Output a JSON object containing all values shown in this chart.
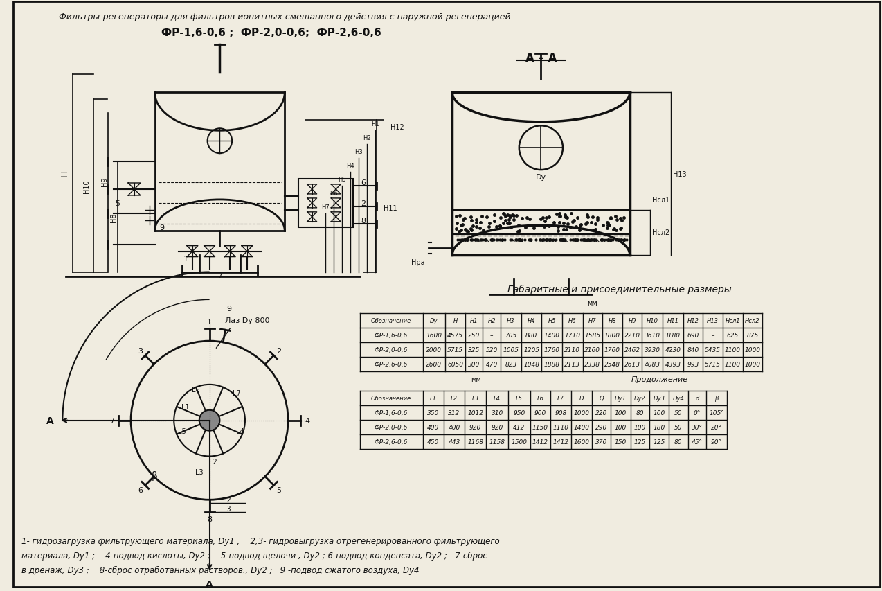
{
  "title_italic": "Фильтры-регенераторы для фильтров ионитных смешанного действия с наружной регенерацией",
  "subtitle": "ФР-1,6-0,6 ;  ФР-2,0-0,6;  ФР-2,6-0,6",
  "section_label": "А – А",
  "table1_title": "Габаритные и присоединительные размеры",
  "table1_mm_note": "мм",
  "table1_headers": [
    "Обозначение",
    "Dy",
    "H",
    "H1",
    "H2",
    "H3",
    "H4",
    "H5",
    "H6",
    "H7",
    "H8",
    "H9",
    "H10",
    "H11",
    "H12",
    "H13",
    "Нсл1",
    "Нсл2"
  ],
  "table1_rows": [
    [
      "ФР-1,6-0,6",
      "1600",
      "4575",
      "250",
      "–",
      "705",
      "880",
      "1400",
      "1710",
      "1585",
      "1800",
      "2210",
      "3610",
      "3180",
      "690",
      "–",
      "625",
      "875"
    ],
    [
      "ФР-2,0-0,6",
      "2000",
      "5715",
      "325",
      "520",
      "1005",
      "1205",
      "1760",
      "2110",
      "2160",
      "1760",
      "2462",
      "3930",
      "4230",
      "840",
      "5435",
      "1100",
      "1000"
    ],
    [
      "ФР-2,6-0,6",
      "2600",
      "6050",
      "300",
      "470",
      "823",
      "1048",
      "1888",
      "2113",
      "2338",
      "2548",
      "2613",
      "4083",
      "4393",
      "993",
      "5715",
      "1100",
      "1000"
    ]
  ],
  "table2_note_mm": "мм",
  "table2_note_cont": "Продолжение",
  "table2_headers": [
    "Обозначение",
    "L1",
    "L2",
    "L3",
    "L4",
    "L5",
    "L6",
    "L7",
    "D",
    "Q",
    "Dy1",
    "Dy2",
    "Dy3",
    "Dy4",
    "d",
    "β"
  ],
  "table2_rows": [
    [
      "ФР-1,6-0,6",
      "350",
      "312",
      "1012",
      "310",
      "950",
      "900",
      "908",
      "1000",
      "220",
      "100",
      "80",
      "100",
      "50",
      "0°",
      "105°"
    ],
    [
      "ФР-2,0-0,6",
      "400",
      "400",
      "920",
      "920",
      "412",
      "1150",
      "1110",
      "1400",
      "290",
      "100",
      "100",
      "180",
      "50",
      "30°",
      "20°"
    ],
    [
      "ФР-2,6-0,6",
      "450",
      "443",
      "1168",
      "1158",
      "1500",
      "1412",
      "1412",
      "1600",
      "370",
      "150",
      "125",
      "125",
      "80",
      "45°",
      "90°"
    ]
  ],
  "footnote_lines": [
    "1- гидрозагрузка фильтрующего материала, Dy1 ;    2,3- гидровыгрузка отрегенерированного фильтрующего",
    "материала, Dy1 ;    4-подвод кислоты, Dy2 ;    5-подвод щелочи , Dy2 ; 6-подвод конденсата, Dy2 ;   7-сброс",
    "в дренаж, Dy3 ;    8-сброс отработанных растворов., Dy2 ;   9 -подвод сжатого воздуха, Dy4"
  ],
  "bg_color": "#f0ece0",
  "line_color": "#111111",
  "text_color": "#111111"
}
